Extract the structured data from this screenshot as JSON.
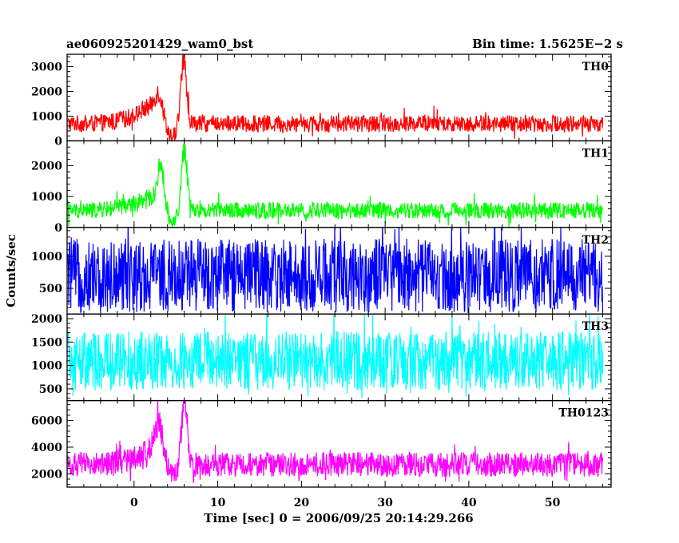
{
  "chart_data": {
    "type": "line",
    "title": "ae060925201429_wam0_bst",
    "bin_time_label": "Bin time: 1.5625E−2 s",
    "xlabel": "Time [sec] 0 = 2006/09/25 20:14:29.266",
    "ylabel": "Counts/sec",
    "xlim": [
      -8.0,
      57.0
    ],
    "x_ticks": [
      0,
      10,
      20,
      30,
      40,
      50
    ],
    "x_tick_labels": [
      "0",
      "10",
      "20",
      "30",
      "40",
      "50"
    ],
    "data_range": [
      -7.9,
      56.0
    ],
    "panels": [
      {
        "name": "TH0",
        "color": "#ff0000",
        "ylim": [
          0,
          3500
        ],
        "y_ticks": [
          0,
          1000,
          2000,
          3000
        ],
        "y_tick_labels": [
          "0",
          "1000",
          "2000",
          "3000"
        ],
        "baseline": 700,
        "noise": 300,
        "lower_bound": 0,
        "upper_bound": 1400,
        "peaks": [
          {
            "t": 0.0,
            "amp": 200,
            "w": 2.0
          },
          {
            "t": 2.0,
            "amp": 500,
            "w": 1.2
          },
          {
            "t": 3.0,
            "amp": 900,
            "w": 0.5
          },
          {
            "t": 5.9,
            "amp": 2600,
            "w": 0.35
          }
        ],
        "dip": {
          "t": 4.4,
          "depth": 550,
          "w": 0.8
        }
      },
      {
        "name": "TH1",
        "color": "#00ff00",
        "ylim": [
          0,
          2800
        ],
        "y_ticks": [
          0,
          1000,
          2000
        ],
        "y_tick_labels": [
          "0",
          "1000",
          "2000"
        ],
        "baseline": 550,
        "noise": 230,
        "lower_bound": 0,
        "upper_bound": 1200,
        "peaks": [
          {
            "t": 0.0,
            "amp": 150,
            "w": 2.0
          },
          {
            "t": 2.0,
            "amp": 300,
            "w": 1.2
          },
          {
            "t": 3.2,
            "amp": 1300,
            "w": 0.4
          },
          {
            "t": 6.0,
            "amp": 2000,
            "w": 0.35
          }
        ],
        "dip": {
          "t": 4.6,
          "depth": 400,
          "w": 0.7
        }
      },
      {
        "name": "TH2",
        "color": "#0000ff",
        "ylim": [
          100,
          1450
        ],
        "y_ticks": [
          500,
          1000
        ],
        "y_tick_labels": [
          "500",
          "1000"
        ],
        "baseline": 700,
        "noise": 500,
        "lower_bound": 100,
        "upper_bound": 1420,
        "peaks": [],
        "dip": null
      },
      {
        "name": "TH3",
        "color": "#00ffff",
        "ylim": [
          250,
          2100
        ],
        "y_ticks": [
          500,
          1000,
          1500,
          2000
        ],
        "y_tick_labels": [
          "500",
          "1000",
          "1500",
          "2000"
        ],
        "baseline": 1100,
        "noise": 550,
        "lower_bound": 300,
        "upper_bound": 2000,
        "peaks": [],
        "dip": null
      },
      {
        "name": "TH0123",
        "color": "#ff00ff",
        "ylim": [
          1000,
          7500
        ],
        "y_ticks": [
          2000,
          4000,
          6000
        ],
        "y_tick_labels": [
          "2000",
          "4000",
          "6000"
        ],
        "baseline": 2700,
        "noise": 800,
        "lower_bound": 1300,
        "upper_bound": 4700,
        "peaks": [
          {
            "t": 0.0,
            "amp": 300,
            "w": 2.0
          },
          {
            "t": 2.0,
            "amp": 800,
            "w": 1.2
          },
          {
            "t": 3.0,
            "amp": 2500,
            "w": 0.5
          },
          {
            "t": 6.0,
            "amp": 4800,
            "w": 0.35
          }
        ],
        "dip": {
          "t": 4.5,
          "depth": 900,
          "w": 0.7
        }
      }
    ]
  }
}
